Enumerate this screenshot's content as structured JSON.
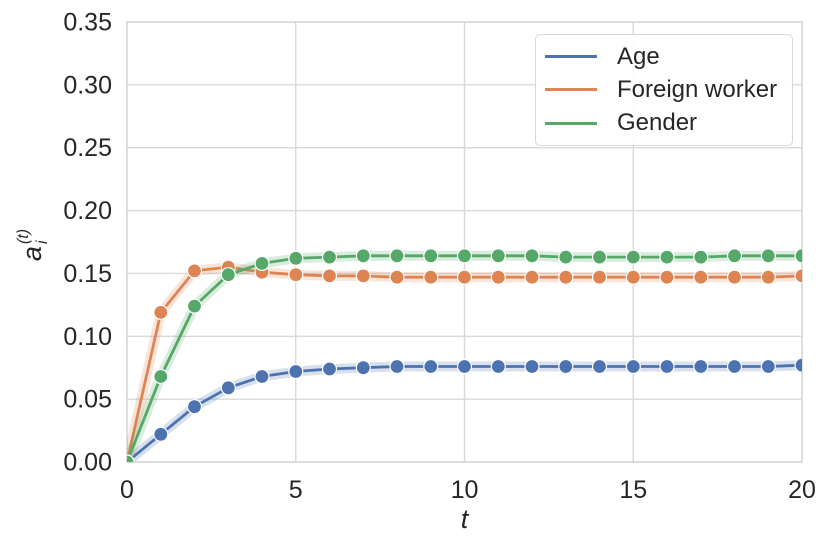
{
  "chart_data": {
    "type": "line",
    "title": "",
    "xlabel": "t",
    "ylabel": "a_i^(t)",
    "ylabel_parts": {
      "base": "a",
      "sub": "i",
      "sup": "(t)"
    },
    "x": [
      0,
      1,
      2,
      3,
      4,
      5,
      6,
      7,
      8,
      9,
      10,
      11,
      12,
      13,
      14,
      15,
      16,
      17,
      18,
      19,
      20
    ],
    "series": [
      {
        "name": "Age",
        "color": "#4C72B0",
        "values": [
          0.0,
          0.022,
          0.044,
          0.059,
          0.068,
          0.072,
          0.074,
          0.075,
          0.076,
          0.076,
          0.076,
          0.076,
          0.076,
          0.076,
          0.076,
          0.076,
          0.076,
          0.076,
          0.076,
          0.076,
          0.077
        ]
      },
      {
        "name": "Foreign worker",
        "color": "#DD8452",
        "values": [
          0.0,
          0.119,
          0.152,
          0.155,
          0.151,
          0.149,
          0.148,
          0.148,
          0.147,
          0.147,
          0.147,
          0.147,
          0.147,
          0.147,
          0.147,
          0.147,
          0.147,
          0.147,
          0.147,
          0.147,
          0.148
        ]
      },
      {
        "name": "Gender",
        "color": "#55A868",
        "values": [
          0.0,
          0.068,
          0.124,
          0.149,
          0.158,
          0.162,
          0.163,
          0.164,
          0.164,
          0.164,
          0.164,
          0.164,
          0.164,
          0.163,
          0.163,
          0.163,
          0.163,
          0.163,
          0.164,
          0.164,
          0.164
        ]
      }
    ],
    "xlim": [
      0,
      20
    ],
    "ylim": [
      0,
      0.35
    ],
    "xtick_values": [
      0,
      5,
      10,
      15,
      20
    ],
    "xtick_labels": [
      "0",
      "5",
      "10",
      "15",
      "20"
    ],
    "ytick_values": [
      0.0,
      0.05,
      0.1,
      0.15,
      0.2,
      0.25,
      0.3,
      0.35
    ],
    "ytick_labels": [
      "0.00",
      "0.05",
      "0.10",
      "0.15",
      "0.20",
      "0.25",
      "0.30",
      "0.35"
    ],
    "grid": true,
    "grid_color": "#d8d8d8",
    "text_color": "#262626",
    "background": "#ffffff",
    "legend_position": "upper right",
    "marker": "circle",
    "band_opacity": 0.22
  }
}
